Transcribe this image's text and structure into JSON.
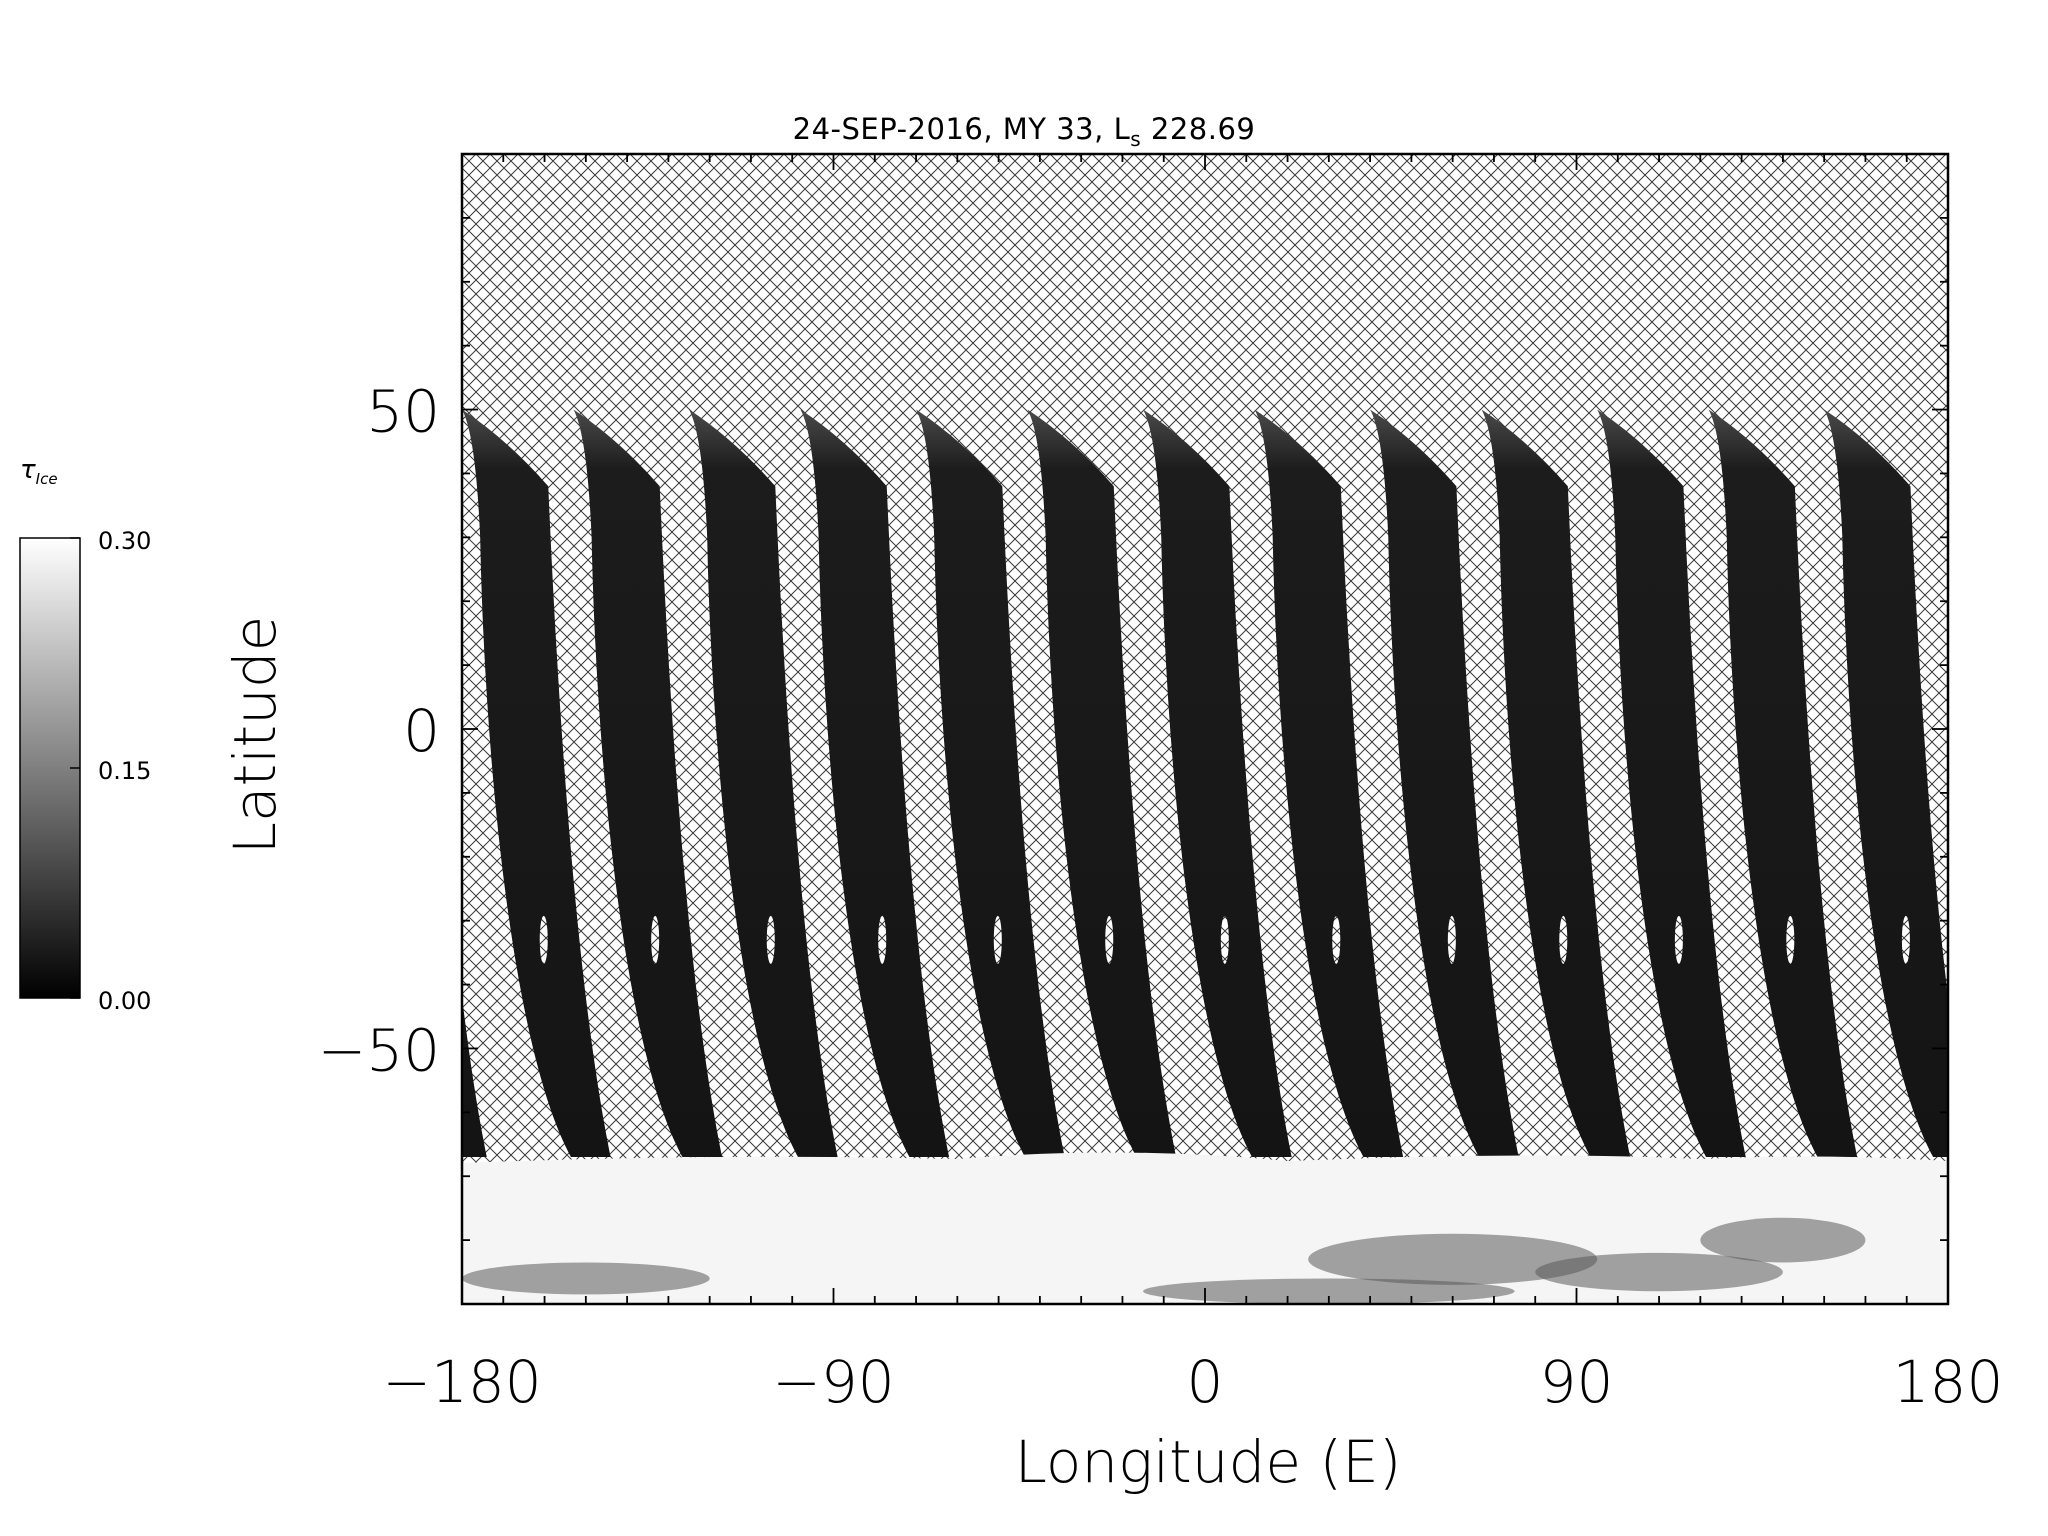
{
  "chart_data": {
    "type": "heatmap",
    "title_main": "24-SEP-2016, MY 33,  L",
    "title_sub": "s",
    "title_value": "228.69",
    "xlabel": "Longitude (E)",
    "ylabel": "Latitude",
    "xlim": [
      -180,
      180
    ],
    "ylim": [
      -90,
      90
    ],
    "xticks": [
      -180,
      -90,
      0,
      90,
      180
    ],
    "xtick_labels": [
      "−180",
      "−90",
      "0",
      "90",
      "180"
    ],
    "yticks": [
      -50,
      0,
      50
    ],
    "ytick_labels": [
      "−50",
      "0",
      "50"
    ],
    "colorbar": {
      "symbol": "τ",
      "symbol_sub": "Ice",
      "min": 0.0,
      "max": 0.3,
      "ticks": [
        0.0,
        0.15,
        0.3
      ],
      "tick_labels": [
        "0.00",
        "0.15",
        "0.30"
      ],
      "colormap": "grayscale",
      "low_color": "#000000",
      "high_color": "#ffffff"
    },
    "swath_start_longitudes": [
      -180,
      -153,
      -125,
      -98,
      -70,
      -43,
      -15,
      12,
      40,
      67,
      95,
      122,
      150
    ],
    "swath_north_edge_latitude": 50,
    "swath_south_edge_latitude": -67,
    "south_polar_bright_region": {
      "lat_from": -90,
      "lat_to": -67,
      "tau_approx": 0.28
    },
    "no_data_pattern": "crosshatch"
  }
}
